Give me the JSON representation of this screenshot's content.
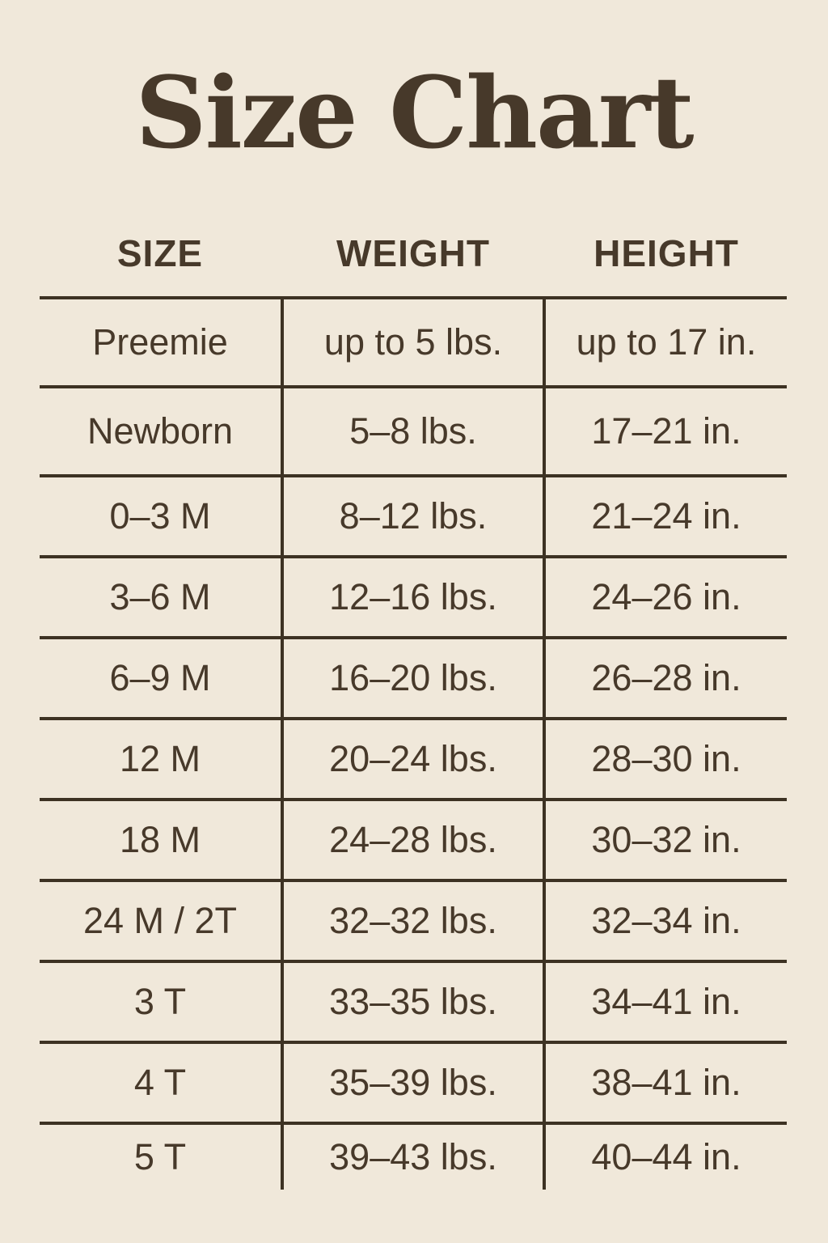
{
  "title": "Size Chart",
  "colors": {
    "background": "#f0e8da",
    "text": "#47392a",
    "line": "#3d3223"
  },
  "chart_data": {
    "type": "table",
    "title": "Size Chart",
    "columns": [
      "SIZE",
      "WEIGHT",
      "HEIGHT"
    ],
    "rows": [
      [
        "Preemie",
        "up to 5 lbs.",
        "up to 17 in."
      ],
      [
        "Newborn",
        "5–8 lbs.",
        "17–21 in."
      ],
      [
        "0–3 M",
        "8–12 lbs.",
        "21–24 in."
      ],
      [
        "3–6 M",
        "12–16 lbs.",
        "24–26 in."
      ],
      [
        "6–9 M",
        "16–20 lbs.",
        "26–28 in."
      ],
      [
        "12 M",
        "20–24 lbs.",
        "28–30 in."
      ],
      [
        "18 M",
        "24–28 lbs.",
        "30–32 in."
      ],
      [
        "24 M / 2T",
        "32–32 lbs.",
        "32–34 in."
      ],
      [
        "3 T",
        "33–35 lbs.",
        "34–41 in."
      ],
      [
        "4 T",
        "35–39 lbs.",
        "38–41 in."
      ],
      [
        "5 T",
        "39–43 lbs.",
        "40–44 in."
      ]
    ]
  }
}
